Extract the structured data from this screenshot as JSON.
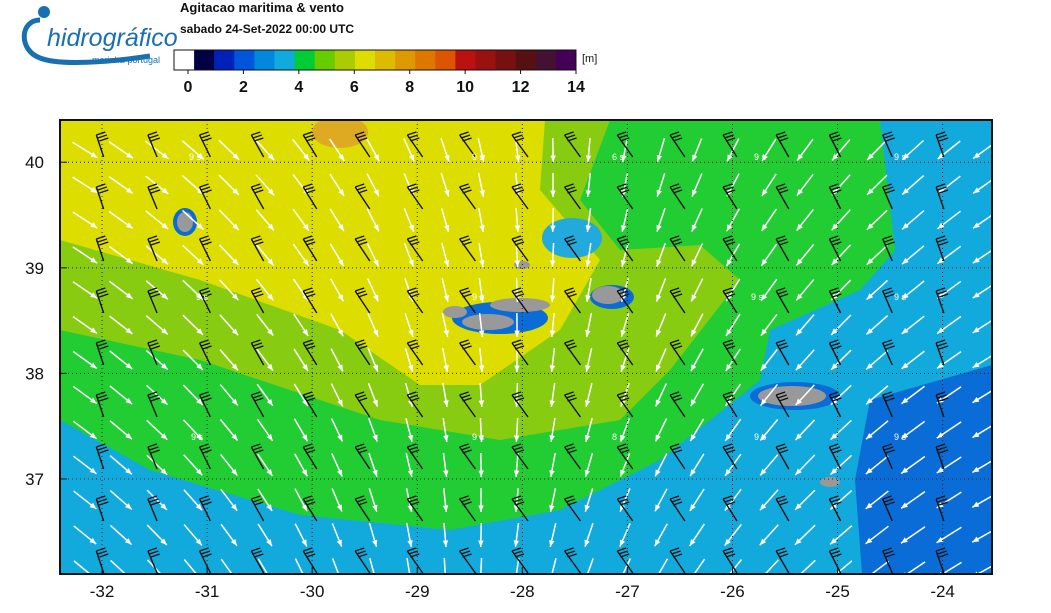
{
  "logo": {
    "name": "hidrográfico",
    "subtitle": "marinha-portugal"
  },
  "header": {
    "title": "Agitacao maritima & vento",
    "subtitle": "sabado 24-Set-2022 00:00 UTC"
  },
  "colorbar": {
    "unit": "[m]",
    "range": [
      0,
      14
    ],
    "ticks": [
      0,
      2,
      4,
      6,
      8,
      10,
      12,
      14
    ]
  },
  "map": {
    "xlim": [
      -32.4,
      -23.53
    ],
    "ylim": [
      36.1,
      40.4
    ],
    "xticks": [
      -32,
      -31,
      -30,
      -29,
      -28,
      -27,
      -26,
      -25,
      -24
    ],
    "yticks": [
      37,
      38,
      39,
      40
    ],
    "grid": true,
    "period_labels": [
      "9 s",
      "9 s",
      "6 s",
      "9 s",
      "9 s",
      "9 s",
      "9 s",
      "9 s",
      "9 s",
      "9 s",
      "9 s",
      "8 s",
      "9 s",
      "9 s"
    ]
  }
}
